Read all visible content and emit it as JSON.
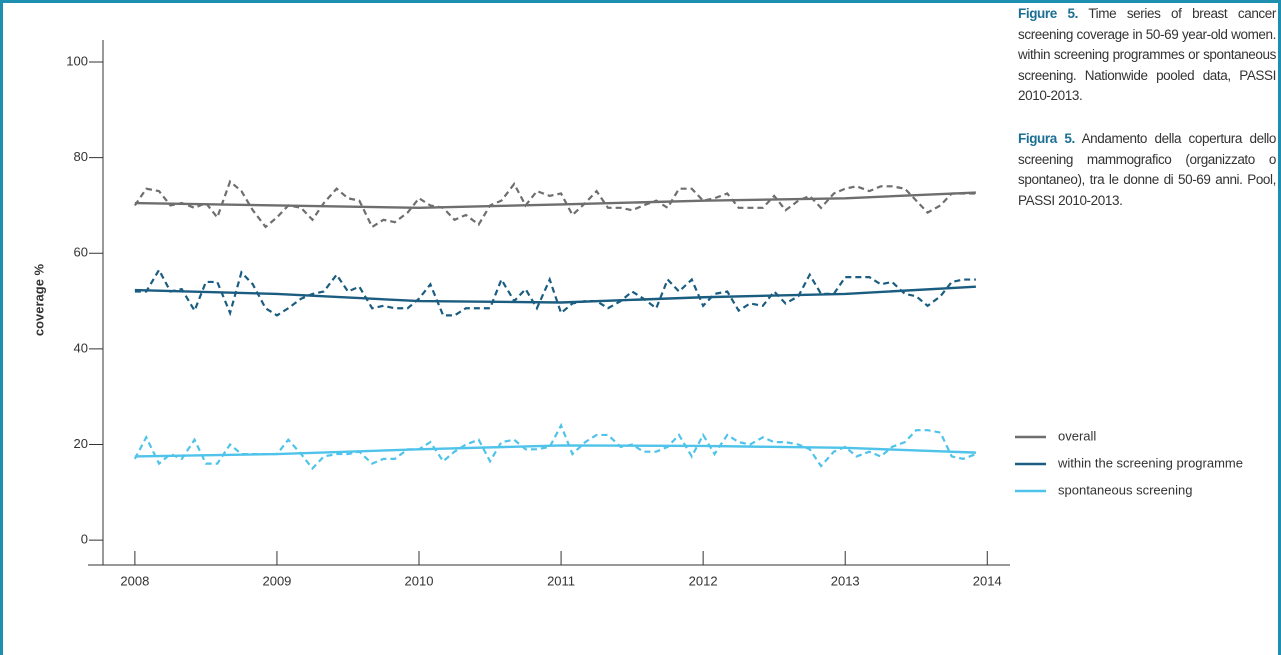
{
  "chart_data": {
    "type": "line",
    "ylabel": "coverage %",
    "caption_en": {
      "label": "Figure 5.",
      "text": "Time series of breast cancer screening coverage in 50-69 year-old women. within screening programmes or spontaneous screening. Nationwide pooled data, PASSI 2010-2013."
    },
    "caption_it": {
      "label": "Figura 5.",
      "text": "Andamento della copertura dello screening mammografico (organizzato o spontaneo), tra le donne di 50-69 anni. Pool, PASSI 2010-2013."
    },
    "xlim": [
      2007.67,
      2014.16
    ],
    "xticks": [
      2008,
      2009,
      2010,
      2011,
      2012,
      2013,
      2014
    ],
    "ylim": [
      -5.2,
      104.6
    ],
    "yticks": [
      0,
      20,
      40,
      60,
      80,
      100
    ],
    "x": [
      2008,
      2008.08,
      2008.17,
      2008.25,
      2008.33,
      2008.42,
      2008.5,
      2008.58,
      2008.67,
      2008.75,
      2008.83,
      2008.92,
      2009,
      2009.08,
      2009.17,
      2009.25,
      2009.33,
      2009.42,
      2009.5,
      2009.58,
      2009.67,
      2009.75,
      2009.83,
      2009.92,
      2010,
      2010.08,
      2010.17,
      2010.25,
      2010.33,
      2010.42,
      2010.5,
      2010.58,
      2010.67,
      2010.75,
      2010.83,
      2010.92,
      2011,
      2011.08,
      2011.17,
      2011.25,
      2011.33,
      2011.42,
      2011.5,
      2011.58,
      2011.67,
      2011.75,
      2011.83,
      2011.92,
      2012,
      2012.08,
      2012.17,
      2012.25,
      2012.33,
      2012.42,
      2012.5,
      2012.58,
      2012.67,
      2012.75,
      2012.83,
      2012.92,
      2013,
      2013.08,
      2013.17,
      2013.25,
      2013.33,
      2013.42,
      2013.5,
      2013.58,
      2013.67,
      2013.75,
      2013.83,
      2013.92
    ],
    "trend_x": [
      2008,
      2009,
      2010,
      2011,
      2012,
      2013,
      2013.92
    ],
    "series": [
      {
        "name": "overall",
        "color": "#6e6e6e",
        "values": [
          70,
          73.5,
          73,
          70,
          70.5,
          69.5,
          70.5,
          67.5,
          75,
          73,
          69,
          65.5,
          67.5,
          70,
          69.5,
          67,
          70.5,
          73.5,
          71.5,
          71,
          65.5,
          67,
          66.5,
          68.5,
          71.5,
          70,
          69.5,
          67,
          68,
          66,
          70,
          71,
          74.5,
          70,
          73,
          72,
          72.5,
          68,
          70.5,
          73,
          69.5,
          69.5,
          69,
          70,
          71,
          69.5,
          73.5,
          73.5,
          71,
          71.5,
          72.5,
          69.5,
          69.5,
          69.5,
          72,
          69,
          71,
          72,
          69.5,
          72.5,
          73.5,
          74,
          73,
          74,
          74,
          73.5,
          71,
          68.5,
          70,
          72.5,
          72.5,
          72.5
        ],
        "trend": [
          70.5,
          70,
          69.5,
          70.2,
          71,
          71.5,
          72.7
        ]
      },
      {
        "name": "within the screening programme",
        "color": "#1b5d80",
        "values": [
          52,
          52,
          56.5,
          52,
          52.5,
          48,
          54,
          54,
          47.5,
          56,
          53.5,
          48.5,
          47,
          48.5,
          50.5,
          51.5,
          52,
          55.5,
          52,
          53,
          48.5,
          49,
          48.5,
          48.5,
          50.5,
          53.5,
          47,
          47,
          48.5,
          48.5,
          48.5,
          54.5,
          50,
          52.5,
          48.5,
          54.5,
          47.5,
          49.5,
          50,
          50,
          48.5,
          50,
          52,
          50.5,
          48.5,
          54.5,
          52,
          54.5,
          49,
          51.5,
          52,
          48,
          49.5,
          49,
          52,
          49.5,
          51,
          55.5,
          51.5,
          51.5,
          55,
          55,
          55,
          53.5,
          54,
          51.5,
          51,
          49,
          51,
          54,
          54.5,
          54.5
        ],
        "trend": [
          52.3,
          51.5,
          50,
          49.7,
          50.8,
          51.5,
          53
        ]
      },
      {
        "name": "spontaneous screening",
        "color": "#4fc3ea",
        "values": [
          17,
          21.5,
          16,
          18,
          17,
          21,
          16,
          16,
          20,
          18,
          18,
          18,
          18,
          21,
          18,
          15,
          17.5,
          18,
          18,
          18.5,
          16,
          17,
          17,
          19,
          19,
          20.5,
          16.5,
          18.5,
          20,
          21,
          16.5,
          20.5,
          21,
          19,
          19,
          19.5,
          24,
          18,
          20.5,
          22,
          22,
          19.5,
          20,
          18.5,
          18.5,
          19.5,
          22,
          17.5,
          22,
          18,
          22,
          20.5,
          20,
          21.5,
          20.5,
          20.5,
          20,
          19,
          15.5,
          18.5,
          19.5,
          17.5,
          18.5,
          17.5,
          19.5,
          20.5,
          23,
          23,
          22.5,
          17.5,
          17,
          18
        ],
        "trend": [
          17.5,
          18,
          19,
          19.8,
          19.7,
          19.3,
          18.3
        ]
      }
    ]
  }
}
